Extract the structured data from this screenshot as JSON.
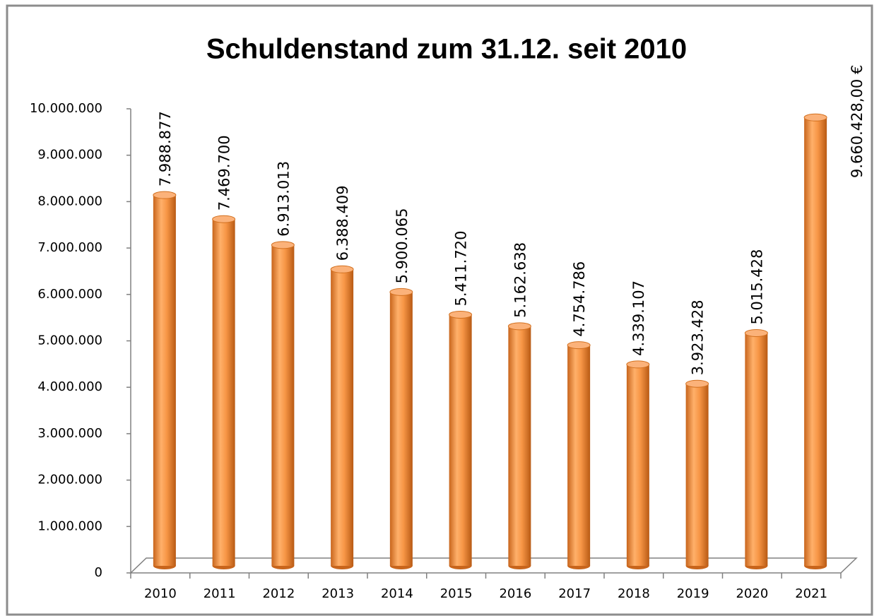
{
  "chart_data": {
    "type": "bar",
    "title": "Schuldenstand zum 31.12. seit 2010",
    "categories": [
      "2010",
      "2011",
      "2012",
      "2013",
      "2014",
      "2015",
      "2016",
      "2017",
      "2018",
      "2019",
      "2020",
      "2021"
    ],
    "values": [
      7988877,
      7469700,
      6913013,
      6388409,
      5900065,
      5411720,
      5162638,
      4754786,
      4339107,
      3923428,
      5015428,
      9660428
    ],
    "value_labels": [
      "7.988.877",
      "7.469.700",
      "6.913.013",
      "6.388.409",
      "5.900.065",
      "5.411.720",
      "5.162.638",
      "4.754.786",
      "4.339.107",
      "3.923.428",
      "5.015.428",
      "9.660.428,00 €"
    ],
    "color": "#f79646",
    "ylim": [
      0,
      10000000
    ],
    "yticks": [
      0,
      {
        "value": 1000000,
        "label": "1.000.000"
      },
      {
        "value": 2000000,
        "label": "2.000.000"
      },
      {
        "value": 3000000,
        "label": "3.000.000"
      },
      {
        "value": 4000000,
        "label": "4.000.000"
      },
      {
        "value": 5000000,
        "label": "5.000.000"
      },
      {
        "value": 6000000,
        "label": "6.000.000"
      },
      {
        "value": 7000000,
        "label": "7.000.000"
      },
      {
        "value": 8000000,
        "label": "8.000.000"
      },
      {
        "value": 9000000,
        "label": "9.000.000"
      },
      {
        "value": 10000000,
        "label": "10.000.000"
      }
    ]
  }
}
